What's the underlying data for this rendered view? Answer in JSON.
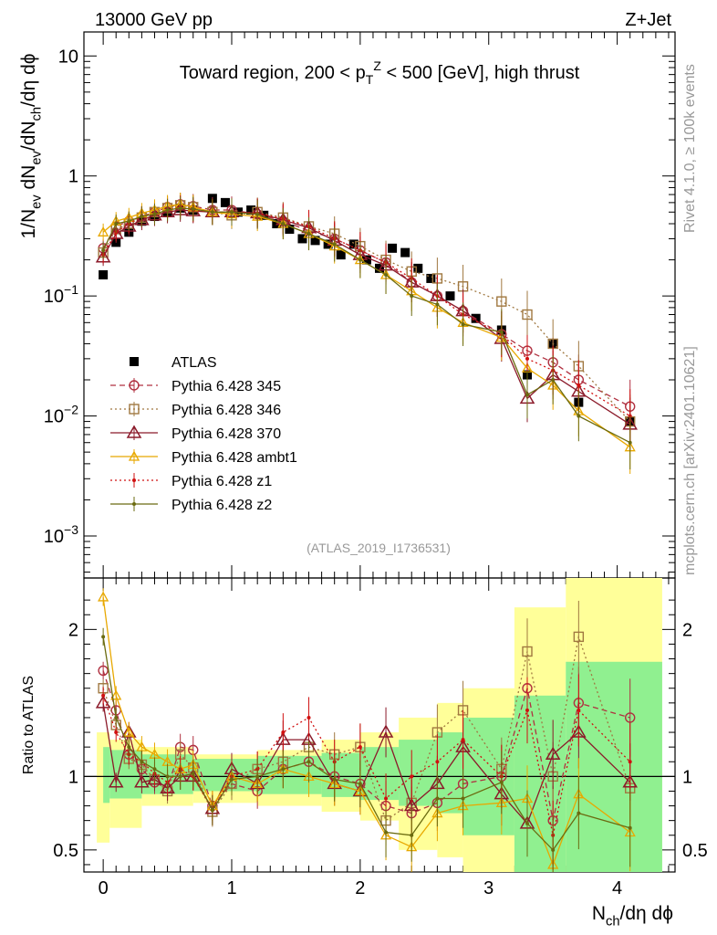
{
  "header": {
    "energy": "13000 GeV pp",
    "process": "Z+Jet"
  },
  "side_labels": {
    "rivet": "Rivet 4.1.0, ≥ 100k events",
    "source": "mcplots.cern.ch [arXiv:2401.10621]"
  },
  "chart_data": [
    {
      "panel": "main",
      "type": "scatter",
      "title_parts": [
        "Toward region, 200 < p",
        "T",
        "Z",
        " < 500 [GeV], high thrust"
      ],
      "ylabel_parts": [
        "1/N",
        "ev",
        " dN",
        "ev",
        "/dN",
        "ch",
        "/dη dϕ"
      ],
      "xlabel_parts": [
        "N",
        "ch",
        "/dη dϕ"
      ],
      "xlim": [
        -0.15,
        4.45
      ],
      "ylim_log10": [
        -3.35,
        1.2
      ],
      "yscale": "log",
      "y_ticks": [
        {
          "value": 10,
          "label_parts": [
            "10"
          ]
        },
        {
          "value": 1,
          "label_parts": [
            "1"
          ]
        },
        {
          "value": 0.1,
          "label_parts": [
            "10",
            "−1"
          ]
        },
        {
          "value": 0.01,
          "label_parts": [
            "10",
            "−2"
          ]
        },
        {
          "value": 0.001,
          "label_parts": [
            "10",
            "−3"
          ]
        }
      ],
      "x_ticks": [
        "0",
        "1",
        "2",
        "3",
        "4"
      ],
      "watermark": "(ATLAS_2019_I1736531)",
      "legend_position": "lower-left",
      "series": [
        {
          "name": "ATLAS",
          "color": "#000000",
          "marker": "filled-square",
          "line": "none",
          "x": [
            0.0,
            0.1,
            0.2,
            0.3,
            0.4,
            0.5,
            0.6,
            0.7,
            0.85,
            0.95,
            1.05,
            1.15,
            1.25,
            1.35,
            1.45,
            1.55,
            1.65,
            1.75,
            1.85,
            1.95,
            2.05,
            2.15,
            2.25,
            2.35,
            2.45,
            2.55,
            2.7,
            2.9,
            3.1,
            3.3,
            3.5,
            3.7,
            4.1
          ],
          "y": [
            0.15,
            0.28,
            0.34,
            0.42,
            0.46,
            0.5,
            0.54,
            0.52,
            0.65,
            0.6,
            0.5,
            0.52,
            0.47,
            0.4,
            0.36,
            0.3,
            0.29,
            0.27,
            0.22,
            0.27,
            0.2,
            0.17,
            0.25,
            0.23,
            0.17,
            0.14,
            0.1,
            0.065,
            0.052,
            0.022,
            0.04,
            0.013,
            0.009
          ]
        },
        {
          "name": "Pythia 6.428 345",
          "color": "#b03040",
          "marker": "open-circle",
          "line": "dashed",
          "x": [
            0.0,
            0.1,
            0.2,
            0.3,
            0.4,
            0.5,
            0.6,
            0.7,
            0.85,
            1.0,
            1.2,
            1.4,
            1.6,
            1.8,
            2.0,
            2.2,
            2.4,
            2.6,
            2.8,
            3.1,
            3.3,
            3.5,
            3.7,
            4.1
          ],
          "y": [
            0.25,
            0.38,
            0.42,
            0.46,
            0.5,
            0.55,
            0.58,
            0.56,
            0.52,
            0.52,
            0.48,
            0.42,
            0.35,
            0.3,
            0.24,
            0.19,
            0.13,
            0.1,
            0.075,
            0.048,
            0.035,
            0.028,
            0.02,
            0.012
          ]
        },
        {
          "name": "Pythia 6.428 346",
          "color": "#a07840",
          "marker": "open-square",
          "line": "dotted",
          "x": [
            0.0,
            0.1,
            0.2,
            0.3,
            0.4,
            0.5,
            0.6,
            0.7,
            0.85,
            1.0,
            1.2,
            1.4,
            1.6,
            1.8,
            2.0,
            2.2,
            2.4,
            2.6,
            2.8,
            3.1,
            3.3,
            3.5,
            3.7,
            4.1
          ],
          "y": [
            0.23,
            0.36,
            0.4,
            0.45,
            0.5,
            0.54,
            0.57,
            0.55,
            0.5,
            0.47,
            0.5,
            0.45,
            0.38,
            0.33,
            0.26,
            0.2,
            0.16,
            0.14,
            0.12,
            0.09,
            0.07,
            0.04,
            0.026,
            0.009
          ]
        },
        {
          "name": "Pythia 6.428 370",
          "color": "#8b1a2a",
          "marker": "open-triangle",
          "line": "solid",
          "x": [
            0.0,
            0.1,
            0.2,
            0.3,
            0.4,
            0.5,
            0.6,
            0.7,
            0.85,
            1.0,
            1.2,
            1.4,
            1.6,
            1.8,
            2.0,
            2.2,
            2.4,
            2.6,
            2.8,
            3.1,
            3.3,
            3.5,
            3.7,
            4.1
          ],
          "y": [
            0.21,
            0.33,
            0.38,
            0.43,
            0.47,
            0.5,
            0.52,
            0.51,
            0.5,
            0.5,
            0.49,
            0.43,
            0.37,
            0.29,
            0.22,
            0.18,
            0.13,
            0.1,
            0.075,
            0.044,
            0.014,
            0.022,
            0.016,
            0.0085
          ]
        },
        {
          "name": "Pythia 6.428 ambt1",
          "color": "#e8a800",
          "marker": "open-triangle-small",
          "line": "solid",
          "x": [
            0.0,
            0.1,
            0.2,
            0.3,
            0.4,
            0.5,
            0.6,
            0.7,
            0.85,
            1.0,
            1.2,
            1.4,
            1.6,
            1.8,
            2.0,
            2.2,
            2.4,
            2.6,
            2.8,
            3.1,
            3.3,
            3.5,
            3.7,
            4.1
          ],
          "y": [
            0.34,
            0.42,
            0.45,
            0.49,
            0.52,
            0.56,
            0.58,
            0.55,
            0.5,
            0.48,
            0.46,
            0.4,
            0.33,
            0.26,
            0.2,
            0.15,
            0.11,
            0.08,
            0.06,
            0.045,
            0.025,
            0.018,
            0.011,
            0.0055
          ]
        },
        {
          "name": "Pythia 6.428 z1",
          "color": "#d01010",
          "marker": "dot",
          "line": "dotted",
          "x": [
            0.0,
            0.1,
            0.2,
            0.3,
            0.4,
            0.5,
            0.6,
            0.7,
            0.85,
            1.0,
            1.2,
            1.4,
            1.6,
            1.8,
            2.0,
            2.2,
            2.4,
            2.6,
            2.8,
            3.1,
            3.3,
            3.5,
            3.7,
            4.1
          ],
          "y": [
            0.22,
            0.34,
            0.4,
            0.46,
            0.48,
            0.52,
            0.55,
            0.52,
            0.5,
            0.5,
            0.49,
            0.44,
            0.38,
            0.3,
            0.24,
            0.19,
            0.14,
            0.1,
            0.07,
            0.048,
            0.03,
            0.024,
            0.018,
            0.01
          ]
        },
        {
          "name": "Pythia 6.428 z2",
          "color": "#6b6b10",
          "marker": "dot",
          "line": "solid",
          "x": [
            0.0,
            0.1,
            0.2,
            0.3,
            0.4,
            0.5,
            0.6,
            0.7,
            0.85,
            1.0,
            1.2,
            1.4,
            1.6,
            1.8,
            2.0,
            2.2,
            2.4,
            2.6,
            2.8,
            3.1,
            3.3,
            3.5,
            3.7,
            4.1
          ],
          "y": [
            0.24,
            0.4,
            0.42,
            0.46,
            0.48,
            0.52,
            0.54,
            0.53,
            0.5,
            0.5,
            0.48,
            0.4,
            0.33,
            0.27,
            0.2,
            0.15,
            0.1,
            0.085,
            0.058,
            0.05,
            0.015,
            0.02,
            0.01,
            0.006
          ]
        }
      ]
    },
    {
      "panel": "ratio",
      "type": "line",
      "ylabel": "Ratio to ATLAS",
      "ylim": [
        0.35,
        2.35
      ],
      "y_ticks": [
        "0.5",
        "1",
        "2"
      ],
      "reference_line": 1,
      "bands": [
        {
          "name": "inner",
          "color": "#90f090",
          "bins": [
            [
              0.0,
              0.05,
              0.82,
              1.2
            ],
            [
              0.05,
              0.3,
              0.85,
              1.18
            ],
            [
              0.3,
              0.7,
              0.88,
              1.15
            ],
            [
              0.7,
              1.2,
              0.9,
              1.12
            ],
            [
              1.2,
              1.7,
              0.88,
              1.14
            ],
            [
              1.7,
              2.0,
              0.86,
              1.16
            ],
            [
              2.0,
              2.3,
              0.84,
              1.2
            ],
            [
              2.3,
              2.6,
              0.8,
              1.25
            ],
            [
              2.6,
              2.8,
              0.75,
              1.3
            ],
            [
              2.8,
              3.2,
              0.6,
              1.4
            ],
            [
              3.2,
              3.6,
              0.35,
              1.55
            ],
            [
              3.6,
              4.35,
              0.35,
              1.78
            ]
          ]
        },
        {
          "name": "outer",
          "color": "#ffff99",
          "bins": [
            [
              -0.05,
              0.05,
              0.55,
              1.3
            ],
            [
              0.05,
              0.3,
              0.65,
              1.25
            ],
            [
              0.3,
              0.7,
              0.8,
              1.2
            ],
            [
              0.7,
              1.2,
              0.82,
              1.15
            ],
            [
              1.2,
              1.7,
              0.8,
              1.18
            ],
            [
              1.7,
              2.0,
              0.76,
              1.25
            ],
            [
              2.0,
              2.3,
              0.7,
              1.3
            ],
            [
              2.3,
              2.6,
              0.5,
              1.4
            ],
            [
              2.6,
              2.8,
              0.45,
              1.5
            ],
            [
              2.8,
              3.2,
              0.35,
              1.6
            ],
            [
              3.2,
              3.6,
              0.35,
              2.15
            ],
            [
              3.6,
              4.35,
              0.35,
              2.35
            ]
          ]
        }
      ],
      "series": [
        {
          "name": "Pythia 6.428 345",
          "x": [
            0.0,
            0.1,
            0.2,
            0.3,
            0.4,
            0.5,
            0.6,
            0.7,
            0.85,
            1.0,
            1.2,
            1.4,
            1.6,
            1.8,
            2.0,
            2.2,
            2.4,
            2.6,
            2.8,
            3.1,
            3.3,
            3.5,
            3.7,
            4.1
          ],
          "y": [
            1.72,
            1.45,
            1.15,
            1.05,
            0.96,
            0.92,
            1.2,
            1.18,
            0.8,
            0.95,
            0.9,
            1.05,
            1.1,
            1.0,
            0.95,
            0.8,
            0.75,
            0.82,
            0.95,
            1.0,
            1.6,
            0.7,
            1.5,
            1.4
          ]
        },
        {
          "name": "Pythia 6.428 346",
          "x": [
            0.0,
            0.1,
            0.2,
            0.3,
            0.4,
            0.5,
            0.6,
            0.7,
            0.85,
            1.0,
            1.2,
            1.4,
            1.6,
            1.8,
            2.0,
            2.2,
            2.4,
            2.6,
            2.8,
            3.1,
            3.3,
            3.5,
            3.7,
            4.1
          ],
          "y": [
            1.6,
            1.35,
            1.12,
            1.08,
            0.98,
            0.9,
            1.15,
            1.06,
            0.76,
            0.95,
            1.05,
            1.1,
            1.2,
            1.15,
            1.2,
            0.7,
            0.82,
            1.3,
            1.45,
            1.05,
            1.85,
            1.0,
            1.95,
            0.92
          ]
        },
        {
          "name": "Pythia 6.428 370",
          "x": [
            0.0,
            0.1,
            0.2,
            0.3,
            0.4,
            0.5,
            0.6,
            0.7,
            0.85,
            1.0,
            1.2,
            1.4,
            1.6,
            1.8,
            2.0,
            2.2,
            2.4,
            2.6,
            2.8,
            3.1,
            3.3,
            3.5,
            3.7,
            4.1
          ],
          "y": [
            1.5,
            0.96,
            1.3,
            0.96,
            0.98,
            0.92,
            1.0,
            1.0,
            0.78,
            1.05,
            0.95,
            1.25,
            1.25,
            0.95,
            0.9,
            1.3,
            0.8,
            0.95,
            1.2,
            0.88,
            0.68,
            1.15,
            1.3,
            0.96
          ]
        },
        {
          "name": "Pythia 6.428 ambt1",
          "x": [
            0.0,
            0.1,
            0.2,
            0.3,
            0.4,
            0.5,
            0.6,
            0.7,
            0.85,
            1.0,
            1.2,
            1.4,
            1.6,
            1.8,
            2.0,
            2.2,
            2.4,
            2.6,
            2.8,
            3.1,
            3.3,
            3.5,
            3.7,
            4.1
          ],
          "y": [
            2.22,
            1.55,
            1.3,
            1.2,
            1.15,
            1.1,
            1.05,
            1.08,
            0.8,
            1.0,
            0.95,
            1.05,
            1.0,
            0.95,
            0.9,
            0.6,
            0.52,
            0.75,
            0.8,
            0.82,
            0.85,
            0.4,
            0.88,
            0.62
          ]
        },
        {
          "name": "Pythia 6.428 z1",
          "x": [
            0.0,
            0.1,
            0.2,
            0.3,
            0.4,
            0.5,
            0.6,
            0.7,
            0.85,
            1.0,
            1.2,
            1.4,
            1.6,
            1.8,
            2.0,
            2.2,
            2.4,
            2.6,
            2.8,
            3.1,
            3.3,
            3.5,
            3.7,
            4.1
          ],
          "y": [
            1.55,
            1.3,
            1.15,
            1.1,
            1.02,
            0.96,
            1.05,
            1.0,
            0.77,
            1.0,
            1.05,
            1.3,
            1.4,
            1.1,
            1.2,
            0.85,
            1.0,
            1.1,
            1.25,
            1.0,
            1.45,
            0.6,
            1.45,
            1.1
          ]
        },
        {
          "name": "Pythia 6.428 z2",
          "x": [
            0.0,
            0.1,
            0.2,
            0.3,
            0.4,
            0.5,
            0.6,
            0.7,
            0.85,
            1.0,
            1.2,
            1.4,
            1.6,
            1.8,
            2.0,
            2.2,
            2.4,
            2.6,
            2.8,
            3.1,
            3.3,
            3.5,
            3.7,
            4.1
          ],
          "y": [
            1.95,
            1.4,
            1.2,
            1.1,
            1.05,
            1.0,
            1.0,
            1.02,
            0.77,
            0.98,
            1.0,
            1.05,
            1.1,
            0.98,
            0.95,
            0.62,
            0.6,
            0.85,
            0.85,
            0.96,
            0.68,
            0.5,
            0.75,
            0.65
          ]
        }
      ]
    }
  ]
}
